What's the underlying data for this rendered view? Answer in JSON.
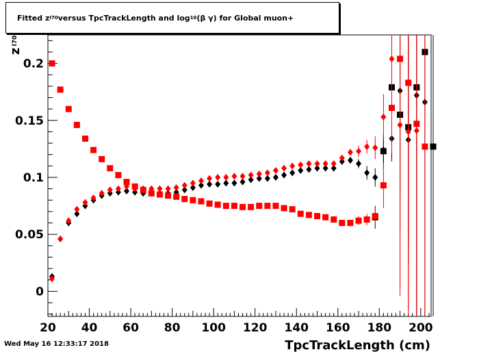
{
  "title": {
    "pre": "Fitted  z",
    "sub1": "I70",
    "mid": "  versus TpcTrackLength and log",
    "sub2": "10",
    "post": " (β γ) for Global muon+"
  },
  "timestamp": "Wed May 16 12:33:17 2018",
  "colors": {
    "series_black": "#000000",
    "series_red": "#ff0000"
  },
  "chart_data": {
    "type": "scatter",
    "xlabel": "TpcTrackLength (cm)",
    "ylabel": {
      "main": "z",
      "sub": "I70"
    },
    "xlim": [
      20,
      205
    ],
    "ylim": [
      -0.022,
      0.225
    ],
    "xticks": [
      20,
      40,
      60,
      80,
      100,
      120,
      140,
      160,
      180,
      200
    ],
    "yticks": [
      0,
      0.05,
      0.1,
      0.15,
      0.2
    ],
    "ytick_labels": [
      "0",
      "0.05",
      "0.1",
      "0.15",
      "0.2"
    ],
    "series": [
      {
        "marker": "diamond",
        "color": "#000000",
        "points": [
          [
            22,
            0.013
          ],
          [
            26,
            0.046
          ],
          [
            30,
            0.06
          ],
          [
            34,
            0.068
          ],
          [
            38,
            0.075
          ],
          [
            42,
            0.08
          ],
          [
            46,
            0.084
          ],
          [
            50,
            0.086
          ],
          [
            54,
            0.087
          ],
          [
            58,
            0.088
          ],
          [
            62,
            0.087
          ],
          [
            66,
            0.086
          ],
          [
            70,
            0.086
          ],
          [
            74,
            0.086
          ],
          [
            78,
            0.086
          ],
          [
            82,
            0.087
          ],
          [
            86,
            0.089
          ],
          [
            90,
            0.091
          ],
          [
            94,
            0.093
          ],
          [
            98,
            0.094
          ],
          [
            102,
            0.094
          ],
          [
            106,
            0.095
          ],
          [
            110,
            0.095
          ],
          [
            114,
            0.096
          ],
          [
            118,
            0.098
          ],
          [
            122,
            0.099
          ],
          [
            126,
            0.099
          ],
          [
            130,
            0.1
          ],
          [
            134,
            0.102
          ],
          [
            138,
            0.104
          ],
          [
            142,
            0.106
          ],
          [
            146,
            0.107
          ],
          [
            150,
            0.108
          ],
          [
            154,
            0.108
          ],
          [
            158,
            0.108
          ],
          [
            162,
            0.114
          ],
          [
            166,
            0.115
          ],
          [
            170,
            0.112
          ],
          [
            174,
            0.104
          ],
          [
            178,
            0.1
          ],
          [
            182,
            0.124
          ],
          [
            186,
            0.134
          ],
          [
            190,
            0.176
          ],
          [
            194,
            0.133
          ],
          [
            198,
            0.172
          ],
          [
            202,
            0.166
          ]
        ],
        "errors": [
          0.002,
          0.001,
          0.001,
          0.001,
          0.001,
          0.001,
          0.001,
          0.001,
          0.001,
          0.001,
          0.001,
          0.001,
          0.001,
          0.001,
          0.001,
          0.001,
          0.001,
          0.001,
          0.001,
          0.001,
          0.001,
          0.001,
          0.001,
          0.001,
          0.001,
          0.001,
          0.001,
          0.001,
          0.001,
          0.001,
          0.002,
          0.002,
          0.002,
          0.002,
          0.002,
          0.003,
          0.003,
          0.004,
          0.006,
          0.008,
          0.012,
          0.02,
          0.12,
          0.09,
          0.2,
          0.25
        ]
      },
      {
        "marker": "square",
        "color": "#000000",
        "points": [
          [
            178,
            0.065
          ],
          [
            182,
            0.123
          ],
          [
            186,
            0.179
          ],
          [
            190,
            0.155
          ],
          [
            194,
            0.144
          ],
          [
            198,
            0.179
          ],
          [
            202,
            0.21
          ],
          [
            206,
            0.127
          ]
        ],
        "errors": [
          0.01,
          0.015,
          0.03,
          0.07,
          0.12,
          0.2,
          0.25,
          0.25
        ]
      },
      {
        "marker": "square",
        "color": "#ff0000",
        "points": [
          [
            22,
            0.2
          ],
          [
            26,
            0.177
          ],
          [
            30,
            0.16
          ],
          [
            34,
            0.146
          ],
          [
            38,
            0.134
          ],
          [
            42,
            0.124
          ],
          [
            46,
            0.116
          ],
          [
            50,
            0.108
          ],
          [
            54,
            0.102
          ],
          [
            58,
            0.096
          ],
          [
            62,
            0.092
          ],
          [
            66,
            0.089
          ],
          [
            70,
            0.086
          ],
          [
            74,
            0.085
          ],
          [
            78,
            0.084
          ],
          [
            82,
            0.083
          ],
          [
            86,
            0.081
          ],
          [
            90,
            0.08
          ],
          [
            94,
            0.079
          ],
          [
            98,
            0.077
          ],
          [
            102,
            0.076
          ],
          [
            106,
            0.075
          ],
          [
            110,
            0.075
          ],
          [
            114,
            0.074
          ],
          [
            118,
            0.074
          ],
          [
            122,
            0.075
          ],
          [
            126,
            0.075
          ],
          [
            130,
            0.075
          ],
          [
            134,
            0.073
          ],
          [
            138,
            0.072
          ],
          [
            142,
            0.068
          ],
          [
            146,
            0.067
          ],
          [
            150,
            0.066
          ],
          [
            154,
            0.065
          ],
          [
            158,
            0.063
          ],
          [
            162,
            0.06
          ],
          [
            166,
            0.06
          ],
          [
            170,
            0.062
          ],
          [
            174,
            0.063
          ],
          [
            178,
            0.066
          ],
          [
            182,
            0.093
          ],
          [
            186,
            0.161
          ],
          [
            190,
            0.204
          ],
          [
            194,
            0.183
          ],
          [
            198,
            0.147
          ],
          [
            202,
            0.127
          ]
        ],
        "errors": [
          0.001,
          0.001,
          0.001,
          0.001,
          0.001,
          0.001,
          0.001,
          0.001,
          0.001,
          0.001,
          0.001,
          0.001,
          0.001,
          0.001,
          0.001,
          0.001,
          0.001,
          0.001,
          0.001,
          0.001,
          0.001,
          0.001,
          0.001,
          0.001,
          0.001,
          0.001,
          0.001,
          0.001,
          0.001,
          0.001,
          0.001,
          0.001,
          0.001,
          0.002,
          0.002,
          0.002,
          0.003,
          0.004,
          0.005,
          0.008,
          0.02,
          0.04,
          0.2,
          0.2,
          0.25,
          0.25
        ]
      },
      {
        "marker": "diamond",
        "color": "#ff0000",
        "points": [
          [
            22,
            0.011
          ],
          [
            26,
            0.046
          ],
          [
            30,
            0.062
          ],
          [
            34,
            0.072
          ],
          [
            38,
            0.078
          ],
          [
            42,
            0.082
          ],
          [
            46,
            0.086
          ],
          [
            50,
            0.089
          ],
          [
            54,
            0.09
          ],
          [
            58,
            0.092
          ],
          [
            62,
            0.09
          ],
          [
            66,
            0.09
          ],
          [
            70,
            0.09
          ],
          [
            74,
            0.09
          ],
          [
            78,
            0.09
          ],
          [
            82,
            0.091
          ],
          [
            86,
            0.093
          ],
          [
            90,
            0.095
          ],
          [
            94,
            0.097
          ],
          [
            98,
            0.099
          ],
          [
            102,
            0.1
          ],
          [
            106,
            0.1
          ],
          [
            110,
            0.101
          ],
          [
            114,
            0.101
          ],
          [
            118,
            0.102
          ],
          [
            122,
            0.103
          ],
          [
            126,
            0.104
          ],
          [
            130,
            0.106
          ],
          [
            134,
            0.108
          ],
          [
            138,
            0.11
          ],
          [
            142,
            0.111
          ],
          [
            146,
            0.112
          ],
          [
            150,
            0.112
          ],
          [
            154,
            0.112
          ],
          [
            158,
            0.112
          ],
          [
            162,
            0.117
          ],
          [
            166,
            0.122
          ],
          [
            170,
            0.123
          ],
          [
            174,
            0.127
          ],
          [
            178,
            0.126
          ],
          [
            182,
            0.153
          ],
          [
            186,
            0.204
          ],
          [
            190,
            0.146
          ],
          [
            194,
            0.14
          ],
          [
            198,
            0.141
          ]
        ],
        "errors": [
          0.002,
          0.001,
          0.001,
          0.001,
          0.001,
          0.001,
          0.001,
          0.001,
          0.001,
          0.001,
          0.001,
          0.001,
          0.001,
          0.001,
          0.001,
          0.001,
          0.001,
          0.001,
          0.001,
          0.001,
          0.001,
          0.001,
          0.001,
          0.001,
          0.001,
          0.001,
          0.001,
          0.001,
          0.001,
          0.001,
          0.002,
          0.002,
          0.002,
          0.002,
          0.002,
          0.003,
          0.003,
          0.005,
          0.006,
          0.01,
          0.02,
          0.04,
          0.15,
          0.2,
          0.25
        ]
      }
    ]
  }
}
